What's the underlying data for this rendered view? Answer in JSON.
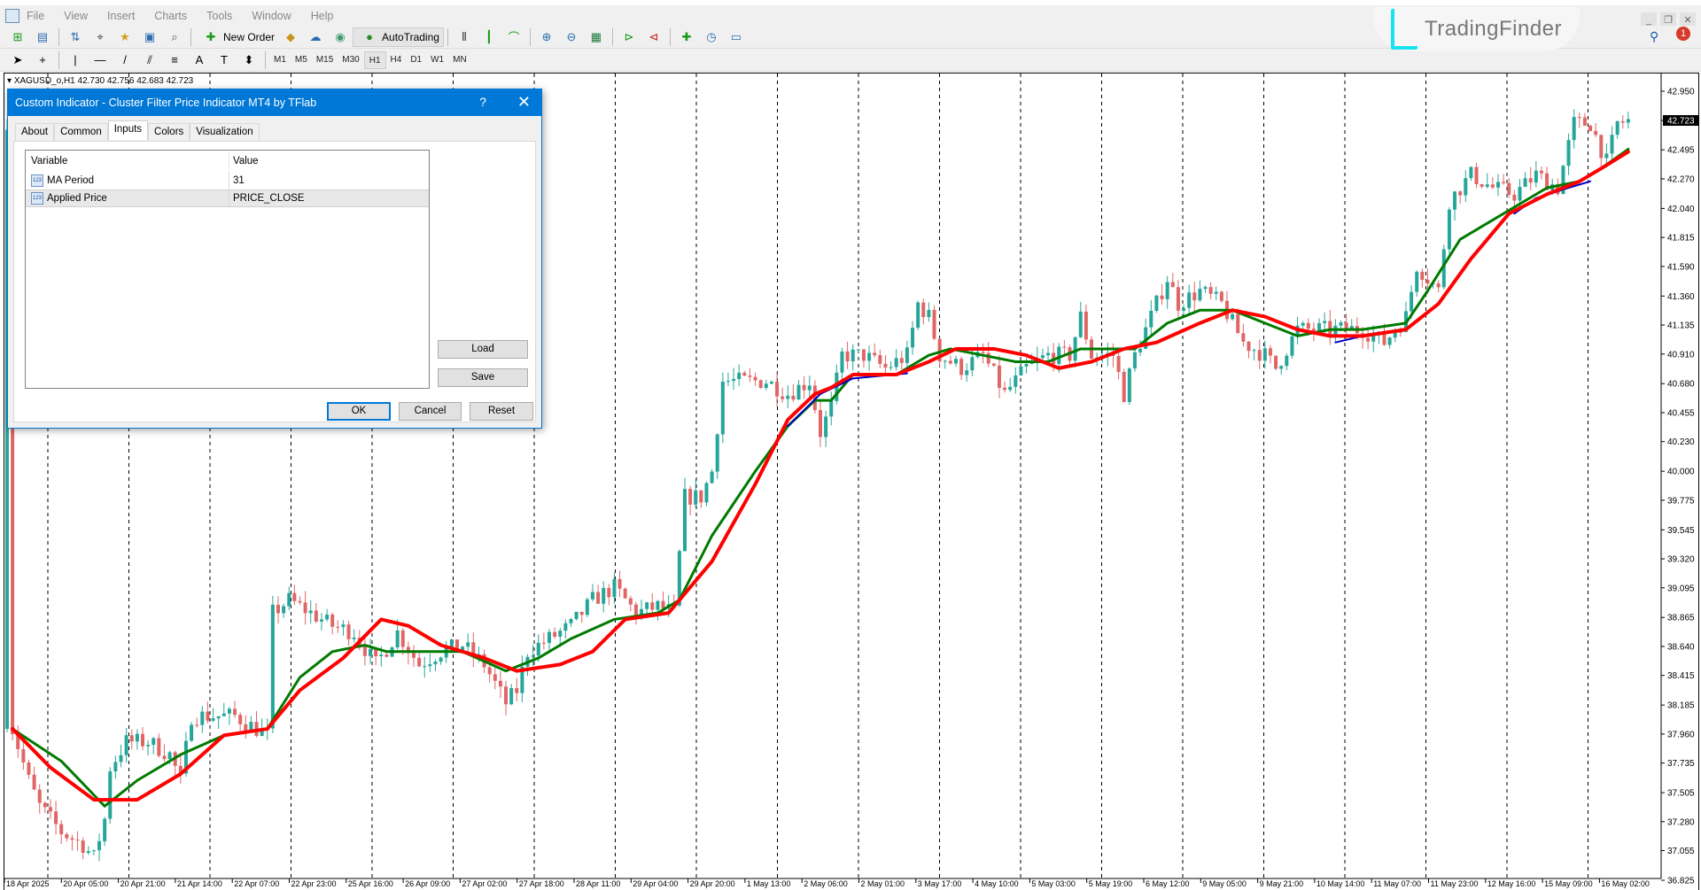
{
  "menu": [
    "File",
    "View",
    "Insert",
    "Charts",
    "Tools",
    "Window",
    "Help"
  ],
  "toolbar": {
    "new_order_label": "New Order",
    "autotrading_label": "AutoTrading",
    "timeframes": [
      "M1",
      "M5",
      "M15",
      "M30",
      "H1",
      "H4",
      "D1",
      "W1",
      "MN"
    ],
    "active_timeframe": "H1",
    "notification_count": "1"
  },
  "logo_text": "TradingFinder",
  "chart": {
    "symbol_line": "XAGUSD_o,H1  42.730 42.756 42.683 42.723",
    "current_price": "42.723",
    "price_labels": [
      "42.950",
      "42.723",
      "42.495",
      "42.270",
      "42.040",
      "41.815",
      "41.590",
      "41.360",
      "41.135",
      "40.910",
      "40.680",
      "40.455",
      "40.230",
      "40.000",
      "39.775",
      "39.545",
      "39.320",
      "39.095",
      "38.865",
      "38.640",
      "38.415",
      "38.185",
      "37.960",
      "37.735",
      "37.505",
      "37.280",
      "37.055",
      "36.825"
    ],
    "time_labels": [
      "18 Apr 2025",
      "20 Apr 05:00",
      "20 Apr 21:00",
      "21 Apr 14:00",
      "22 Apr 07:00",
      "22 Apr 23:00",
      "25 Apr 16:00",
      "26 Apr 09:00",
      "27 Apr 02:00",
      "27 Apr 18:00",
      "28 Apr 11:00",
      "29 Apr 04:00",
      "29 Apr 20:00",
      "1 May 13:00",
      "2 May 06:00",
      "2 May 01:00",
      "3 May 17:00",
      "4 May 10:00",
      "5 May 03:00",
      "5 May 19:00",
      "6 May 12:00",
      "9 May 05:00",
      "9 May 21:00",
      "10 May 14:00",
      "11 May 07:00",
      "11 May 23:00",
      "12 May 16:00",
      "15 May 09:00",
      "16 May 02:00"
    ]
  },
  "chart_data": {
    "type": "candlestick",
    "symbol": "XAGUSD_o",
    "timeframe": "H1",
    "ylim": [
      36.825,
      42.95
    ],
    "grid": "vertical dashed",
    "colors": {
      "bull": "#26a69a",
      "bear": "#e06666",
      "ma_red": "#ff0000",
      "ma_green": "#007a00",
      "ma_blue": "#0000cc"
    },
    "close_path": [
      [
        1,
        38.0
      ],
      [
        4,
        37.6
      ],
      [
        6,
        37.4
      ],
      [
        10,
        37.2
      ],
      [
        14,
        37.1
      ],
      [
        16,
        37.0
      ],
      [
        18,
        37.3
      ],
      [
        19,
        37.7
      ],
      [
        22,
        37.9
      ],
      [
        26,
        37.9
      ],
      [
        30,
        37.8
      ],
      [
        32,
        37.6
      ],
      [
        34,
        38.1
      ],
      [
        38,
        38.1
      ],
      [
        42,
        38.1
      ],
      [
        46,
        38.0
      ],
      [
        48,
        37.95
      ],
      [
        49,
        38.9
      ],
      [
        52,
        39.0
      ],
      [
        56,
        38.9
      ],
      [
        60,
        38.8
      ],
      [
        64,
        38.75
      ],
      [
        68,
        38.5
      ],
      [
        72,
        38.75
      ],
      [
        76,
        38.5
      ],
      [
        80,
        38.6
      ],
      [
        84,
        38.65
      ],
      [
        88,
        38.5
      ],
      [
        92,
        38.2
      ],
      [
        94,
        38.3
      ],
      [
        96,
        38.6
      ],
      [
        100,
        38.7
      ],
      [
        104,
        38.8
      ],
      [
        108,
        39.0
      ],
      [
        112,
        39.1
      ],
      [
        116,
        38.9
      ],
      [
        120,
        38.95
      ],
      [
        123,
        38.9
      ],
      [
        125,
        39.8
      ],
      [
        128,
        39.8
      ],
      [
        130,
        40.0
      ],
      [
        132,
        40.7
      ],
      [
        136,
        40.7
      ],
      [
        140,
        40.7
      ],
      [
        144,
        40.6
      ],
      [
        148,
        40.7
      ],
      [
        150,
        40.3
      ],
      [
        152,
        40.5
      ],
      [
        154,
        40.9
      ],
      [
        158,
        40.9
      ],
      [
        162,
        40.8
      ],
      [
        166,
        40.9
      ],
      [
        168,
        41.3
      ],
      [
        170,
        41.2
      ],
      [
        172,
        40.9
      ],
      [
        176,
        40.8
      ],
      [
        180,
        40.9
      ],
      [
        184,
        40.6
      ],
      [
        188,
        40.8
      ],
      [
        192,
        40.9
      ],
      [
        196,
        40.9
      ],
      [
        198,
        41.2
      ],
      [
        200,
        40.9
      ],
      [
        204,
        40.9
      ],
      [
        206,
        40.6
      ],
      [
        208,
        40.9
      ],
      [
        212,
        41.3
      ],
      [
        214,
        41.5
      ],
      [
        216,
        41.3
      ],
      [
        220,
        41.4
      ],
      [
        224,
        41.3
      ],
      [
        228,
        41.0
      ],
      [
        232,
        40.9
      ],
      [
        234,
        40.8
      ],
      [
        238,
        41.1
      ],
      [
        242,
        41.1
      ],
      [
        246,
        41.1
      ],
      [
        250,
        41.1
      ],
      [
        254,
        41.0
      ],
      [
        258,
        41.2
      ],
      [
        260,
        41.6
      ],
      [
        264,
        41.4
      ],
      [
        266,
        42.1
      ],
      [
        270,
        42.3
      ],
      [
        274,
        42.2
      ],
      [
        278,
        42.15
      ],
      [
        282,
        42.3
      ],
      [
        286,
        42.2
      ],
      [
        289,
        42.7
      ],
      [
        292,
        42.7
      ],
      [
        295,
        42.4
      ],
      [
        297,
        42.7
      ],
      [
        299,
        42.72
      ]
    ],
    "ma_red": [
      [
        1,
        38.0
      ],
      [
        8,
        37.7
      ],
      [
        16,
        37.45
      ],
      [
        24,
        37.45
      ],
      [
        32,
        37.65
      ],
      [
        40,
        37.95
      ],
      [
        48,
        38.0
      ],
      [
        54,
        38.3
      ],
      [
        62,
        38.55
      ],
      [
        69,
        38.85
      ],
      [
        74,
        38.8
      ],
      [
        80,
        38.65
      ],
      [
        88,
        38.55
      ],
      [
        94,
        38.45
      ],
      [
        102,
        38.5
      ],
      [
        108,
        38.6
      ],
      [
        114,
        38.85
      ],
      [
        122,
        38.9
      ],
      [
        130,
        39.3
      ],
      [
        138,
        39.9
      ],
      [
        144,
        40.4
      ],
      [
        149,
        40.6
      ],
      [
        152,
        40.65
      ],
      [
        156,
        40.75
      ],
      [
        164,
        40.75
      ],
      [
        170,
        40.85
      ],
      [
        175,
        40.95
      ],
      [
        182,
        40.95
      ],
      [
        188,
        40.9
      ],
      [
        194,
        40.8
      ],
      [
        200,
        40.85
      ],
      [
        206,
        40.95
      ],
      [
        212,
        41.0
      ],
      [
        220,
        41.15
      ],
      [
        226,
        41.25
      ],
      [
        232,
        41.2
      ],
      [
        238,
        41.1
      ],
      [
        244,
        41.05
      ],
      [
        250,
        41.05
      ],
      [
        258,
        41.1
      ],
      [
        264,
        41.3
      ],
      [
        270,
        41.65
      ],
      [
        277,
        42.0
      ],
      [
        284,
        42.15
      ],
      [
        290,
        42.25
      ],
      [
        294,
        42.35
      ],
      [
        299,
        42.48
      ]
    ],
    "ma_green": [
      [
        1,
        38.0
      ],
      [
        10,
        37.75
      ],
      [
        18,
        37.4
      ],
      [
        24,
        37.6
      ],
      [
        32,
        37.8
      ],
      [
        40,
        37.95
      ],
      [
        48,
        38.0
      ],
      [
        54,
        38.4
      ],
      [
        60,
        38.6
      ],
      [
        66,
        38.65
      ],
      [
        70,
        38.6
      ],
      [
        76,
        38.6
      ],
      [
        84,
        38.6
      ],
      [
        92,
        38.45
      ],
      [
        98,
        38.55
      ],
      [
        104,
        38.7
      ],
      [
        112,
        38.85
      ],
      [
        120,
        38.9
      ],
      [
        124,
        39.0
      ],
      [
        130,
        39.5
      ],
      [
        138,
        40.0
      ],
      [
        144,
        40.35
      ],
      [
        149,
        40.55
      ],
      [
        152,
        40.55
      ],
      [
        156,
        40.75
      ],
      [
        164,
        40.75
      ],
      [
        170,
        40.9
      ],
      [
        174,
        40.95
      ],
      [
        180,
        40.9
      ],
      [
        186,
        40.85
      ],
      [
        192,
        40.85
      ],
      [
        198,
        40.95
      ],
      [
        204,
        40.95
      ],
      [
        208,
        40.95
      ],
      [
        214,
        41.15
      ],
      [
        220,
        41.25
      ],
      [
        226,
        41.25
      ],
      [
        232,
        41.15
      ],
      [
        238,
        41.05
      ],
      [
        244,
        41.1
      ],
      [
        250,
        41.1
      ],
      [
        258,
        41.15
      ],
      [
        262,
        41.4
      ],
      [
        268,
        41.8
      ],
      [
        276,
        42.0
      ],
      [
        284,
        42.2
      ],
      [
        290,
        42.25
      ],
      [
        294,
        42.35
      ],
      [
        299,
        42.5
      ]
    ],
    "ma_blue": [
      [
        [
          144,
          40.35
        ],
        [
          150,
          40.6
        ],
        [
          156,
          40.72
        ],
        [
          166,
          40.76
        ]
      ],
      [
        [
          245,
          41.0
        ],
        [
          252,
          41.07
        ]
      ],
      [
        [
          278,
          42.0
        ],
        [
          282,
          42.12
        ],
        [
          288,
          42.2
        ],
        [
          292,
          42.25
        ]
      ]
    ]
  },
  "dialog": {
    "title": "Custom Indicator - Cluster Filter Price Indicator MT4 by TFlab",
    "help": "?",
    "tabs": [
      "About",
      "Common",
      "Inputs",
      "Colors",
      "Visualization"
    ],
    "active_tab": "Inputs",
    "columns": [
      "Variable",
      "Value"
    ],
    "rows": [
      {
        "variable": "MA Period",
        "value": "31"
      },
      {
        "variable": "Applied Price",
        "value": "PRICE_CLOSE"
      }
    ],
    "load_label": "Load",
    "save_label": "Save",
    "ok_label": "OK",
    "cancel_label": "Cancel",
    "reset_label": "Reset"
  }
}
